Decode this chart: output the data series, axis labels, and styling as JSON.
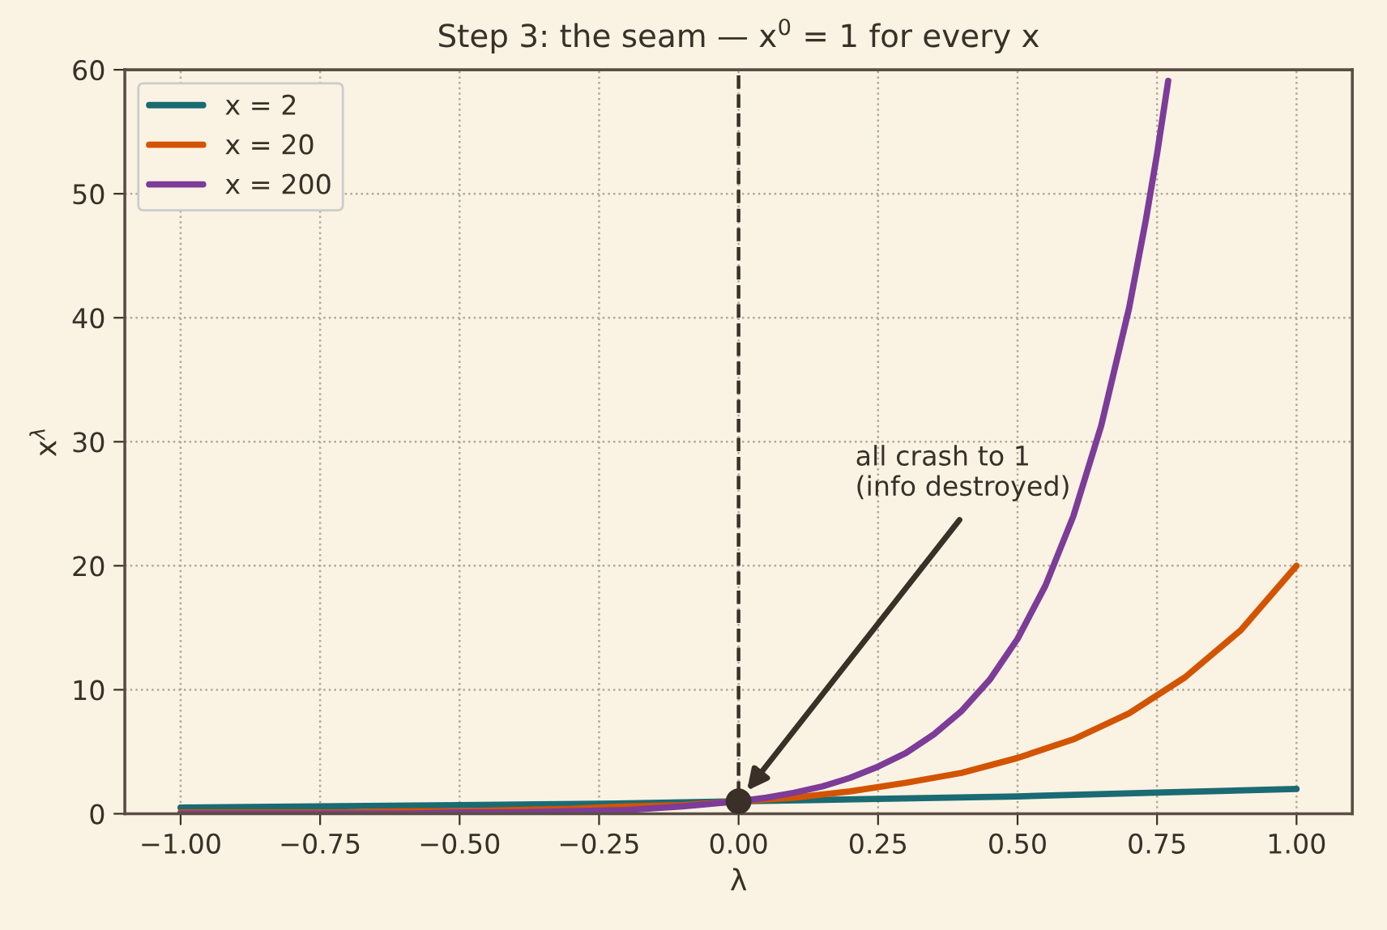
{
  "chart_data": {
    "type": "line",
    "title": "Step 3: the seam — x$^{0}$ = 1 for every x",
    "xlabel": "λ",
    "ylabel": "x$^{λ}$",
    "xlim": [
      -1.1,
      1.1
    ],
    "ylim": [
      0,
      60
    ],
    "xticks": [
      {
        "value": -1,
        "label": "−1.00"
      },
      {
        "value": -0.75,
        "label": "−0.75"
      },
      {
        "value": -0.5,
        "label": "−0.50"
      },
      {
        "value": -0.25,
        "label": "−0.25"
      },
      {
        "value": 0,
        "label": "0.00"
      },
      {
        "value": 0.25,
        "label": "0.25"
      },
      {
        "value": 0.5,
        "label": "0.50"
      },
      {
        "value": 0.75,
        "label": "0.75"
      },
      {
        "value": 1,
        "label": "1.00"
      }
    ],
    "yticks": [
      0,
      10,
      20,
      30,
      40,
      50,
      60
    ],
    "grid": true,
    "legend": "top left",
    "line_style": "solid",
    "series": [
      {
        "name": "x = 2",
        "color": "#1a6b73",
        "x": [
          -1,
          -0.75,
          -0.5,
          -0.25,
          0,
          0.25,
          0.5,
          0.75,
          1
        ],
        "values": [
          0.5,
          0.6,
          0.7,
          0.8,
          1,
          1.2,
          1.4,
          1.7,
          2
        ]
      },
      {
        "name": "x = 20",
        "color": "#d35400",
        "x": [
          -1,
          -0.9,
          -0.8,
          -0.7,
          -0.6,
          -0.5,
          -0.4,
          -0.3,
          -0.2,
          -0.1,
          0,
          0.1,
          0.2,
          0.3,
          0.4,
          0.5,
          0.6,
          0.7,
          0.8,
          0.9,
          1
        ],
        "values": [
          0.1,
          0.1,
          0.1,
          0.1,
          0.2,
          0.2,
          0.3,
          0.4,
          0.6,
          0.7,
          1,
          1.3,
          1.8,
          2.5,
          3.3,
          4.5,
          6,
          8.1,
          11,
          14.8,
          20
        ]
      },
      {
        "name": "x = 200",
        "color": "#7d3c98",
        "x": [
          -1,
          -0.8,
          -0.6,
          -0.5,
          -0.4,
          -0.3,
          -0.2,
          -0.1,
          0,
          0.05,
          0.1,
          0.15,
          0.2,
          0.25,
          0.3,
          0.35,
          0.4,
          0.45,
          0.5,
          0.55,
          0.6,
          0.65,
          0.7,
          0.73,
          0.75,
          0.77
        ],
        "values": [
          0,
          0,
          0,
          0.1,
          0.1,
          0.2,
          0.3,
          0.6,
          1,
          1.3,
          1.7,
          2.2,
          2.9,
          3.8,
          4.9,
          6.4,
          8.3,
          10.8,
          14.1,
          18.4,
          24,
          31.3,
          40.8,
          47.9,
          53.2,
          59.1
        ]
      },
      {
        "type": "scatter",
        "color": "#3a3028",
        "x": [
          0
        ],
        "values": [
          1
        ],
        "marker": "circle"
      }
    ],
    "ref_lines": [
      {
        "axis": "x",
        "value": 0,
        "color": "#3a3028",
        "line_style": "dashed"
      }
    ],
    "annotations": [
      "all crash to 1\n(info destroyed)"
    ]
  }
}
